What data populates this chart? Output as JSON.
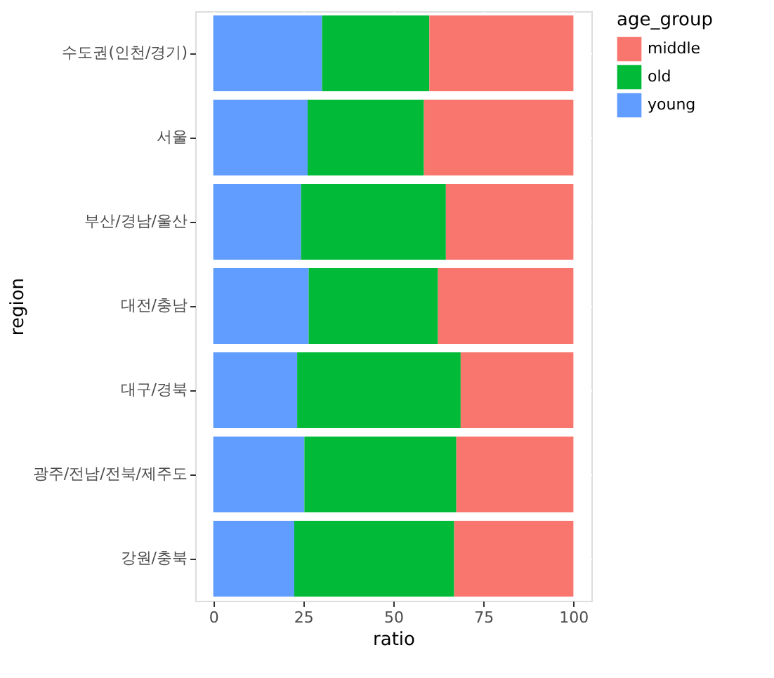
{
  "chart_data": {
    "type": "bar",
    "orientation": "horizontal",
    "stacked": true,
    "xlabel": "ratio",
    "ylabel": "region",
    "legend_title": "age_group",
    "legend": "right",
    "grid": true,
    "categories": [
      "수도권(인천/경기)",
      "서울",
      "부산/경남/울산",
      "대전/충남",
      "대구/경북",
      "광주/전남/전북/제주도",
      "강원/충북"
    ],
    "series": [
      {
        "name": "young",
        "color": "#619cff",
        "values": [
          30.2,
          26.2,
          24.4,
          26.5,
          23.3,
          25.3,
          22.5
        ]
      },
      {
        "name": "old",
        "color": "#00ba38",
        "values": [
          29.8,
          32.3,
          40.2,
          35.9,
          45.4,
          42.2,
          44.4
        ]
      },
      {
        "name": "middle",
        "color": "#f8766d",
        "values": [
          40.0,
          41.5,
          35.4,
          37.6,
          31.3,
          32.5,
          33.1
        ]
      }
    ],
    "xlim": [
      -5,
      105
    ],
    "xticks": [
      0,
      25,
      50,
      75,
      100
    ]
  }
}
